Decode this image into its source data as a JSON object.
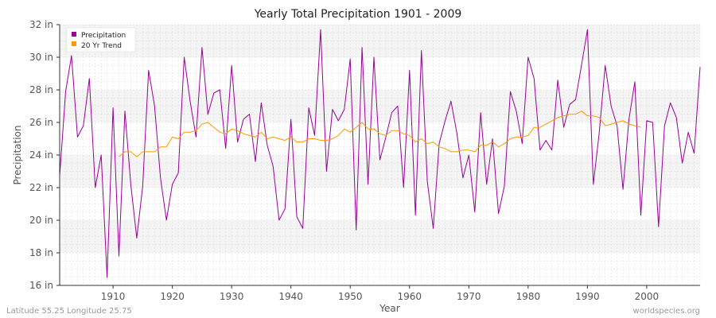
{
  "chart_data": {
    "type": "line",
    "title": "Yearly Total Precipitation 1901 - 2009",
    "xlabel": "Year",
    "ylabel": "Precipitation",
    "xlim": [
      1901,
      2009
    ],
    "ylim": [
      16,
      32
    ],
    "x_ticks": [
      1910,
      1920,
      1930,
      1940,
      1950,
      1960,
      1970,
      1980,
      1990,
      2000
    ],
    "y_ticks": [
      16,
      18,
      20,
      22,
      24,
      26,
      28,
      30,
      32
    ],
    "y_tick_labels": [
      "16 in",
      "18 in",
      "20 in",
      "22 in",
      "24 in",
      "26 in",
      "28 in",
      "30 in",
      "32 in"
    ],
    "grid": true,
    "legend_position": "top-left",
    "series": [
      {
        "name": "Precipitation",
        "color": "#990099",
        "x": [
          1901,
          1902,
          1903,
          1904,
          1905,
          1906,
          1907,
          1908,
          1909,
          1910,
          1911,
          1912,
          1913,
          1914,
          1915,
          1916,
          1917,
          1918,
          1919,
          1920,
          1921,
          1922,
          1923,
          1924,
          1925,
          1926,
          1927,
          1928,
          1929,
          1930,
          1931,
          1932,
          1933,
          1934,
          1935,
          1936,
          1937,
          1938,
          1939,
          1940,
          1941,
          1942,
          1943,
          1944,
          1945,
          1946,
          1947,
          1948,
          1949,
          1950,
          1951,
          1952,
          1953,
          1954,
          1955,
          1956,
          1957,
          1958,
          1959,
          1960,
          1961,
          1962,
          1963,
          1964,
          1965,
          1966,
          1967,
          1968,
          1969,
          1970,
          1971,
          1972,
          1973,
          1974,
          1975,
          1976,
          1977,
          1978,
          1979,
          1980,
          1981,
          1982,
          1983,
          1984,
          1985,
          1986,
          1987,
          1988,
          1989,
          1990,
          1991,
          1992,
          1993,
          1994,
          1995,
          1996,
          1997,
          1998,
          1999,
          2000,
          2001,
          2002,
          2003,
          2004,
          2005,
          2006,
          2007,
          2008,
          2009
        ],
        "values": [
          22.7,
          27.9,
          30.1,
          25.1,
          25.8,
          28.7,
          22.0,
          24.0,
          16.5,
          26.9,
          17.8,
          26.7,
          22.2,
          18.9,
          22.1,
          29.2,
          27.0,
          22.6,
          20.0,
          22.2,
          22.9,
          30.0,
          27.3,
          25.1,
          30.6,
          26.5,
          27.8,
          28.0,
          24.4,
          29.5,
          24.8,
          26.2,
          26.5,
          23.6,
          27.2,
          24.6,
          23.3,
          20.0,
          20.7,
          26.2,
          20.2,
          19.5,
          26.9,
          25.2,
          31.7,
          23.0,
          26.8,
          26.1,
          26.8,
          29.9,
          19.4,
          30.6,
          22.2,
          30.0,
          23.7,
          25.1,
          26.6,
          27.0,
          22.0,
          29.2,
          20.3,
          30.4,
          22.4,
          19.5,
          24.7,
          26.1,
          27.3,
          25.3,
          22.6,
          24.0,
          20.5,
          26.6,
          22.2,
          25.0,
          20.4,
          22.1,
          27.9,
          26.7,
          24.7,
          30.0,
          28.7,
          24.3,
          24.9,
          24.3,
          28.6,
          25.7,
          27.1,
          27.4,
          29.5,
          31.7,
          22.2,
          25.4,
          29.5,
          27.0,
          25.8,
          21.9,
          26.2,
          28.5,
          20.3,
          26.1,
          26.0,
          19.6,
          25.8,
          27.2,
          26.3,
          23.5,
          25.4,
          24.1,
          29.4
        ]
      },
      {
        "name": "20 Yr Trend",
        "color": "#ff9900",
        "x": [
          1911,
          1912,
          1913,
          1914,
          1915,
          1916,
          1917,
          1918,
          1919,
          1920,
          1921,
          1922,
          1923,
          1924,
          1925,
          1926,
          1927,
          1928,
          1929,
          1930,
          1931,
          1932,
          1933,
          1934,
          1935,
          1936,
          1937,
          1938,
          1939,
          1940,
          1941,
          1942,
          1943,
          1944,
          1945,
          1946,
          1947,
          1948,
          1949,
          1950,
          1951,
          1952,
          1953,
          1954,
          1955,
          1956,
          1957,
          1958,
          1959,
          1960,
          1961,
          1962,
          1963,
          1964,
          1965,
          1966,
          1967,
          1968,
          1969,
          1970,
          1971,
          1972,
          1973,
          1974,
          1975,
          1976,
          1977,
          1978,
          1979,
          1980,
          1981,
          1982,
          1983,
          1984,
          1985,
          1986,
          1987,
          1988,
          1989,
          1990,
          1991,
          1992,
          1993,
          1994,
          1995,
          1996,
          1997,
          1998,
          1999
        ],
        "values": [
          23.9,
          24.2,
          24.2,
          23.9,
          24.2,
          24.2,
          24.2,
          24.5,
          24.5,
          25.1,
          25.0,
          25.4,
          25.4,
          25.5,
          25.9,
          26.0,
          25.7,
          25.4,
          25.3,
          25.6,
          25.5,
          25.3,
          25.2,
          25.1,
          25.4,
          25.0,
          25.1,
          25.0,
          24.9,
          25.1,
          24.8,
          24.8,
          25.0,
          25.0,
          24.9,
          24.9,
          25.0,
          25.2,
          25.6,
          25.4,
          25.7,
          26.0,
          25.6,
          25.6,
          25.3,
          25.2,
          25.5,
          25.5,
          25.3,
          25.2,
          24.8,
          25.0,
          24.7,
          24.8,
          24.5,
          24.4,
          24.2,
          24.2,
          24.3,
          24.3,
          24.2,
          24.6,
          24.6,
          24.8,
          24.5,
          24.7,
          25.0,
          25.1,
          25.1,
          25.2,
          25.7,
          25.7,
          25.9,
          26.1,
          26.3,
          26.4,
          26.5,
          26.5,
          26.7,
          26.4,
          26.4,
          26.3,
          25.8,
          25.9,
          26.0,
          26.1,
          25.9,
          25.8,
          25.7
        ]
      }
    ],
    "bands": {
      "fill": "#f4f4f4",
      "alt_fill": "#ffffff",
      "grid_color": "#dddddd"
    }
  },
  "footer": {
    "left": "Latitude 55.25 Longitude 25.75",
    "right": "worldspecies.org"
  }
}
